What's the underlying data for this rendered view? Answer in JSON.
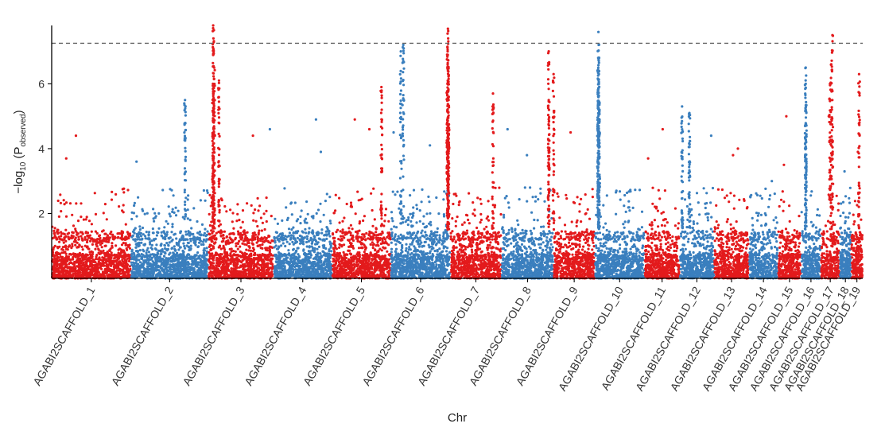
{
  "chart_data": {
    "type": "scatter",
    "title": "",
    "xlabel": "Chr",
    "ylabel": {
      "prefix": "−log",
      "sub1": "10",
      "paren_open": " (P",
      "sub2": "observed",
      "paren_close": ")"
    },
    "ylim": [
      0,
      7.8
    ],
    "yticks": [
      "2",
      "4",
      "6"
    ],
    "yticks_values": [
      2,
      4,
      6
    ],
    "significance_threshold": 7.25,
    "grid": false,
    "colors": [
      "#e31a1c",
      "#3a7fbe"
    ],
    "threshold_color": "#666666",
    "chromosomes": [
      {
        "label": "AGABI2SCAFFOLD_1",
        "start": 0,
        "end": 3.27,
        "peaks": [
          {
            "x": 1.0,
            "y": 4.4
          },
          {
            "x": 0.6,
            "y": 3.7
          }
        ]
      },
      {
        "label": "AGABI2SCAFFOLD_2",
        "start": 3.27,
        "end": 6.46,
        "peaks": [
          {
            "x": 5.5,
            "y": 5.5
          },
          {
            "x": 3.5,
            "y": 3.6
          }
        ]
      },
      {
        "label": "AGABI2SCAFFOLD_3",
        "start": 6.46,
        "end": 9.15,
        "peaks": [
          {
            "x": 6.66,
            "y": 7.8
          },
          {
            "x": 6.67,
            "y": 7.4
          },
          {
            "x": 6.68,
            "y": 7.0
          },
          {
            "x": 6.7,
            "y": 6.5
          },
          {
            "x": 6.65,
            "y": 6.0
          },
          {
            "x": 6.9,
            "y": 6.1
          },
          {
            "x": 8.3,
            "y": 4.4
          }
        ]
      },
      {
        "label": "AGABI2SCAFFOLD_4",
        "start": 9.15,
        "end": 11.56,
        "peaks": [
          {
            "x": 9.0,
            "y": 4.6
          },
          {
            "x": 10.9,
            "y": 4.9
          },
          {
            "x": 11.1,
            "y": 3.9
          }
        ]
      },
      {
        "label": "AGABI2SCAFFOLD_5",
        "start": 11.56,
        "end": 13.99,
        "peaks": [
          {
            "x": 12.5,
            "y": 4.9
          },
          {
            "x": 13.1,
            "y": 4.6
          },
          {
            "x": 13.6,
            "y": 5.9
          }
        ]
      },
      {
        "label": "AGABI2SCAFFOLD_6",
        "start": 13.99,
        "end": 16.44,
        "peaks": [
          {
            "x": 14.5,
            "y": 7.2
          },
          {
            "x": 14.4,
            "y": 7.0
          },
          {
            "x": 14.1,
            "y": 4.5
          },
          {
            "x": 15.6,
            "y": 4.1
          }
        ]
      },
      {
        "label": "AGABI2SCAFFOLD_7",
        "start": 16.44,
        "end": 18.55,
        "peaks": [
          {
            "x": 16.34,
            "y": 7.7
          },
          {
            "x": 16.35,
            "y": 7.4
          },
          {
            "x": 16.33,
            "y": 7.0
          },
          {
            "x": 16.36,
            "y": 6.5
          },
          {
            "x": 16.32,
            "y": 6.0
          },
          {
            "x": 16.37,
            "y": 5.5
          },
          {
            "x": 18.2,
            "y": 5.7
          }
        ]
      },
      {
        "label": "AGABI2SCAFFOLD_8",
        "start": 18.55,
        "end": 20.7,
        "peaks": [
          {
            "x": 18.8,
            "y": 4.6
          },
          {
            "x": 19.6,
            "y": 3.8
          }
        ]
      },
      {
        "label": "AGABI2SCAFFOLD_9",
        "start": 20.7,
        "end": 22.4,
        "peaks": [
          {
            "x": 20.5,
            "y": 7.0
          },
          {
            "x": 20.7,
            "y": 6.3
          },
          {
            "x": 20.5,
            "y": 5.5
          },
          {
            "x": 21.4,
            "y": 4.5
          }
        ]
      },
      {
        "label": "AGABI2SCAFFOLD_10",
        "start": 22.4,
        "end": 24.45,
        "peaks": [
          {
            "x": 22.55,
            "y": 7.6
          },
          {
            "x": 22.56,
            "y": 7.2
          },
          {
            "x": 22.54,
            "y": 6.8
          },
          {
            "x": 22.57,
            "y": 6.3
          },
          {
            "x": 22.53,
            "y": 5.8
          },
          {
            "x": 22.58,
            "y": 5.2
          }
        ]
      },
      {
        "label": "AGABI2SCAFFOLD_11",
        "start": 24.45,
        "end": 25.9,
        "peaks": [
          {
            "x": 25.2,
            "y": 4.6
          },
          {
            "x": 24.6,
            "y": 3.7
          }
        ]
      },
      {
        "label": "AGABI2SCAFFOLD_12",
        "start": 25.9,
        "end": 27.32,
        "peaks": [
          {
            "x": 26.0,
            "y": 5.3
          },
          {
            "x": 26.3,
            "y": 5.1
          },
          {
            "x": 27.2,
            "y": 4.4
          }
        ]
      },
      {
        "label": "AGABI2SCAFFOLD_13",
        "start": 27.32,
        "end": 28.76,
        "peaks": [
          {
            "x": 28.3,
            "y": 4.0
          },
          {
            "x": 28.1,
            "y": 3.8
          }
        ]
      },
      {
        "label": "AGABI2SCAFFOLD_14",
        "start": 28.76,
        "end": 29.95,
        "peaks": [
          {
            "x": 29.7,
            "y": 3.0
          }
        ]
      },
      {
        "label": "AGABI2SCAFFOLD_15",
        "start": 29.95,
        "end": 30.91,
        "peaks": [
          {
            "x": 30.3,
            "y": 5.0
          },
          {
            "x": 30.2,
            "y": 3.5
          }
        ]
      },
      {
        "label": "AGABI2SCAFFOLD_16",
        "start": 30.91,
        "end": 31.72,
        "peaks": [
          {
            "x": 31.1,
            "y": 6.5
          },
          {
            "x": 31.1,
            "y": 6.0
          },
          {
            "x": 31.1,
            "y": 5.2
          }
        ]
      },
      {
        "label": "AGABI2SCAFFOLD_17",
        "start": 31.72,
        "end": 32.5,
        "peaks": [
          {
            "x": 32.2,
            "y": 7.5
          },
          {
            "x": 32.15,
            "y": 6.6
          },
          {
            "x": 32.1,
            "y": 6.0
          },
          {
            "x": 32.05,
            "y": 5.0
          },
          {
            "x": 32.2,
            "y": 4.2
          }
        ]
      },
      {
        "label": "AGABI2SCAFFOLD_18",
        "start": 32.5,
        "end": 32.97,
        "peaks": [
          {
            "x": 32.7,
            "y": 3.3
          }
        ]
      },
      {
        "label": "AGABI2SCAFFOLD_19",
        "start": 32.97,
        "end": 33.45,
        "peaks": [
          {
            "x": 33.3,
            "y": 6.3
          },
          {
            "x": 33.25,
            "y": 3.9
          }
        ]
      }
    ]
  }
}
